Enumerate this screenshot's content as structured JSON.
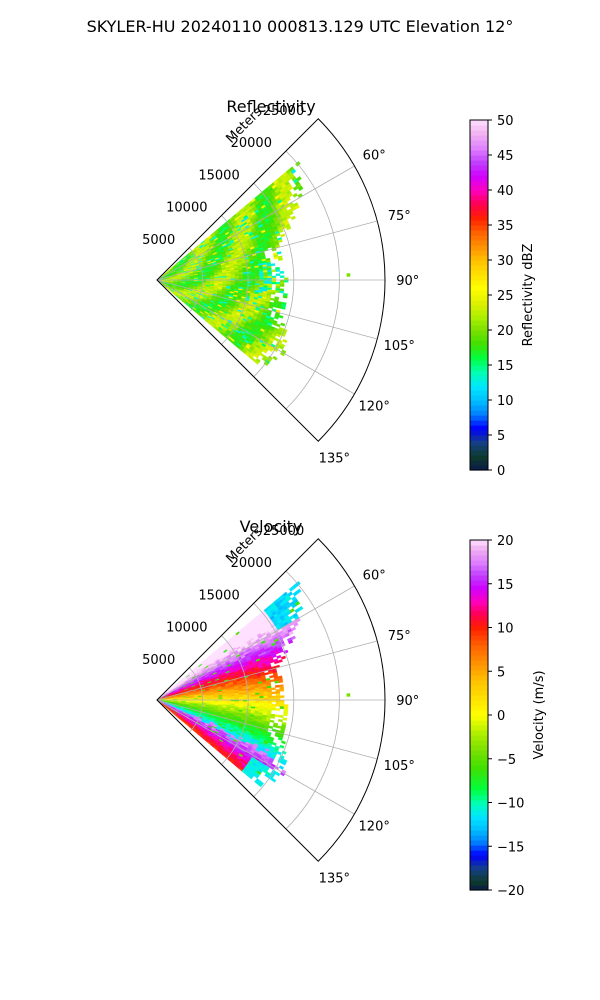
{
  "figure": {
    "suptitle": "SKYLER-HU  20240110  000813.129 UTC Elevation 12°"
  },
  "colors": {
    "background": "#ffffff",
    "grid": "#b0b0b0",
    "axis": "#000000"
  },
  "chart_data": [
    {
      "type": "heatmap",
      "subtype": "polar-sector-ppi",
      "title": "Reflectivity",
      "range_label": "Meters",
      "angle_tick_labels": [
        "60°",
        "75°",
        "90°",
        "105°",
        "120°",
        "135°"
      ],
      "angle_ticks_deg": [
        60,
        75,
        90,
        105,
        120,
        135
      ],
      "angle_range_deg": [
        45,
        135
      ],
      "range_tick_labels": [
        "5000",
        "10000",
        "15000",
        "20000",
        "25000"
      ],
      "range_ticks_m": [
        5000,
        10000,
        15000,
        20000,
        25000
      ],
      "range_limit_m": [
        0,
        25000
      ],
      "data_extent": {
        "azimuth_deg": [
          50,
          130
        ],
        "max_range_by_azimuth_m": [
          [
            50,
            20000
          ],
          [
            60,
            18000
          ],
          [
            75,
            13500
          ],
          [
            90,
            14000
          ],
          [
            105,
            14000
          ],
          [
            120,
            16000
          ],
          [
            130,
            14500
          ]
        ]
      },
      "dominant_values_dBZ": "15-25",
      "grid": true,
      "colorbar": {
        "label": "Reflectivity dBZ",
        "min": 0,
        "max": 50,
        "tick_values": [
          0,
          5,
          10,
          15,
          20,
          25,
          30,
          35,
          40,
          45,
          50
        ],
        "tick_labels": [
          "0",
          "5",
          "10",
          "15",
          "20",
          "25",
          "30",
          "35",
          "40",
          "45",
          "50"
        ],
        "stops": [
          [
            0,
            "#0a1a4a"
          ],
          [
            2,
            "#0e3b2b"
          ],
          [
            4,
            "#143f8a"
          ],
          [
            6,
            "#0000ff"
          ],
          [
            8,
            "#0080ff"
          ],
          [
            10,
            "#00c0ff"
          ],
          [
            12,
            "#00e8ff"
          ],
          [
            14,
            "#00ffb0"
          ],
          [
            16,
            "#00ff40"
          ],
          [
            18,
            "#40e000"
          ],
          [
            20,
            "#7ae000"
          ],
          [
            22,
            "#b0f000"
          ],
          [
            24,
            "#e0f000"
          ],
          [
            26,
            "#ffff00"
          ],
          [
            28,
            "#ffe000"
          ],
          [
            30,
            "#ffc000"
          ],
          [
            32,
            "#ff9000"
          ],
          [
            34,
            "#ff6000"
          ],
          [
            36,
            "#ff2000"
          ],
          [
            38,
            "#ff0050"
          ],
          [
            40,
            "#ff00c0"
          ],
          [
            42,
            "#d000ff"
          ],
          [
            44,
            "#c040ff"
          ],
          [
            46,
            "#e080ff"
          ],
          [
            48,
            "#f0b0f0"
          ],
          [
            50,
            "#ffe0ff"
          ]
        ]
      }
    },
    {
      "type": "heatmap",
      "subtype": "polar-sector-ppi",
      "title": "Velocity",
      "range_label": "Meters",
      "angle_tick_labels": [
        "60°",
        "75°",
        "90°",
        "105°",
        "120°",
        "135°"
      ],
      "angle_ticks_deg": [
        60,
        75,
        90,
        105,
        120,
        135
      ],
      "angle_range_deg": [
        45,
        135
      ],
      "range_tick_labels": [
        "5000",
        "10000",
        "15000",
        "20000",
        "25000"
      ],
      "range_ticks_m": [
        5000,
        10000,
        15000,
        20000,
        25000
      ],
      "range_limit_m": [
        0,
        25000
      ],
      "data_extent": {
        "azimuth_deg": [
          50,
          130
        ],
        "max_range_by_azimuth_m": [
          [
            50,
            20000
          ],
          [
            60,
            18000
          ],
          [
            75,
            13500
          ],
          [
            90,
            14000
          ],
          [
            105,
            14000
          ],
          [
            120,
            16000
          ],
          [
            130,
            14500
          ]
        ]
      },
      "pattern": "positive (red/magenta) velocities at azimuths below ~85°, negative (green/cyan/magenta-fold) velocities at azimuths above ~95°",
      "grid": true,
      "colorbar": {
        "label": "Velocity (m/s)",
        "min": -20,
        "max": 20,
        "tick_values": [
          -20,
          -15,
          -10,
          -5,
          0,
          5,
          10,
          15,
          20
        ],
        "tick_labels": [
          "−20",
          "−15",
          "−10",
          "−5",
          "0",
          "5",
          "10",
          "15",
          "20"
        ],
        "stops": [
          [
            -20,
            "#0a1a4a"
          ],
          [
            -19,
            "#0e3b2b"
          ],
          [
            -17.5,
            "#143f8a"
          ],
          [
            -16,
            "#0000ff"
          ],
          [
            -14.5,
            "#0080ff"
          ],
          [
            -13,
            "#00c0ff"
          ],
          [
            -11.5,
            "#00e8ff"
          ],
          [
            -10,
            "#00ffb0"
          ],
          [
            -8.5,
            "#00ff40"
          ],
          [
            -6,
            "#40e000"
          ],
          [
            -4,
            "#7ae000"
          ],
          [
            -2,
            "#b0f000"
          ],
          [
            0,
            "#ffff00"
          ],
          [
            2,
            "#ffe000"
          ],
          [
            4,
            "#ffc000"
          ],
          [
            6,
            "#ff9000"
          ],
          [
            8,
            "#ff6000"
          ],
          [
            10,
            "#ff2000"
          ],
          [
            11.5,
            "#ff0050"
          ],
          [
            13,
            "#ff00c0"
          ],
          [
            14.5,
            "#d000ff"
          ],
          [
            16,
            "#c040ff"
          ],
          [
            17.5,
            "#e080ff"
          ],
          [
            19,
            "#f0b0f0"
          ],
          [
            20,
            "#ffe0ff"
          ]
        ]
      }
    }
  ]
}
